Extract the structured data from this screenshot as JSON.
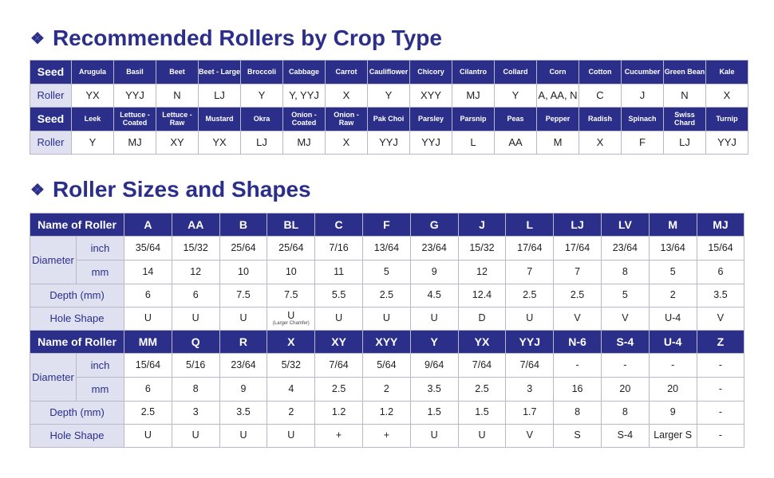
{
  "crop_section": {
    "title": "Recommended Rollers by Crop Type",
    "seed_label": "Seed",
    "roller_label": "Roller",
    "rows": [
      {
        "seeds": [
          "Arugula",
          "Basil",
          "Beet",
          "Beet - Large",
          "Broccoli",
          "Cabbage",
          "Carrot",
          "Cauliflower",
          "Chicory",
          "Cilantro",
          "Collard",
          "Corn",
          "Cotton",
          "Cucumber",
          "Green Bean",
          "Kale"
        ],
        "rollers": [
          "YX",
          "YYJ",
          "N",
          "LJ",
          "Y",
          "Y, YYJ",
          "X",
          "Y",
          "XYY",
          "MJ",
          "Y",
          "A, AA, N",
          "C",
          "J",
          "N",
          "X"
        ]
      },
      {
        "seeds": [
          "Leek",
          "Lettuce - Coated",
          "Lettuce - Raw",
          "Mustard",
          "Okra",
          "Onion - Coated",
          "Onion - Raw",
          "Pak Choi",
          "Parsley",
          "Parsnip",
          "Peas",
          "Pepper",
          "Radish",
          "Spinach",
          "Swiss Chard",
          "Turnip"
        ],
        "rollers": [
          "Y",
          "MJ",
          "XY",
          "YX",
          "LJ",
          "MJ",
          "X",
          "YYJ",
          "YYJ",
          "L",
          "AA",
          "M",
          "X",
          "F",
          "LJ",
          "YYJ"
        ]
      }
    ]
  },
  "sizes_section": {
    "title": "Roller Sizes and Shapes",
    "labels": {
      "name": "Name of Roller",
      "diameter": "Diameter",
      "inch": "inch",
      "mm": "mm",
      "depth": "Depth (mm)",
      "hole": "Hole Shape"
    },
    "blocks": [
      {
        "names": [
          "A",
          "AA",
          "B",
          "BL",
          "C",
          "F",
          "G",
          "J",
          "L",
          "LJ",
          "LV",
          "M",
          "MJ"
        ],
        "inch": [
          "35/64",
          "15/32",
          "25/64",
          "25/64",
          "7/16",
          "13/64",
          "23/64",
          "15/32",
          "17/64",
          "17/64",
          "23/64",
          "13/64",
          "15/64"
        ],
        "mm": [
          "14",
          "12",
          "10",
          "10",
          "11",
          "5",
          "9",
          "12",
          "7",
          "7",
          "8",
          "5",
          "6"
        ],
        "depth": [
          "6",
          "6",
          "7.5",
          "7.5",
          "5.5",
          "2.5",
          "4.5",
          "12.4",
          "2.5",
          "2.5",
          "5",
          "2",
          "3.5"
        ],
        "hole": [
          "U",
          "U",
          "U",
          "U",
          "U",
          "U",
          "U",
          "D",
          "U",
          "V",
          "V",
          "U-4",
          "V"
        ],
        "hole_notes": [
          "",
          "",
          "",
          "(Larger Chamfer)",
          "",
          "",
          "",
          "",
          "",
          "",
          "",
          "",
          ""
        ]
      },
      {
        "names": [
          "MM",
          "Q",
          "R",
          "X",
          "XY",
          "XYY",
          "Y",
          "YX",
          "YYJ",
          "N-6",
          "S-4",
          "U-4",
          "Z"
        ],
        "inch": [
          "15/64",
          "5/16",
          "23/64",
          "5/32",
          "7/64",
          "5/64",
          "9/64",
          "7/64",
          "7/64",
          "-",
          "-",
          "-",
          "-"
        ],
        "mm": [
          "6",
          "8",
          "9",
          "4",
          "2.5",
          "2",
          "3.5",
          "2.5",
          "3",
          "16",
          "20",
          "20",
          "-"
        ],
        "depth": [
          "2.5",
          "3",
          "3.5",
          "2",
          "1.2",
          "1.2",
          "1.5",
          "1.5",
          "1.7",
          "8",
          "8",
          "9",
          "-"
        ],
        "hole": [
          "U",
          "U",
          "U",
          "U",
          "+",
          "+",
          "U",
          "U",
          "V",
          "S",
          "S-4",
          "Larger S",
          "-"
        ],
        "hole_notes": [
          "",
          "",
          "",
          "",
          "",
          "",
          "",
          "",
          "",
          "",
          "",
          "",
          ""
        ]
      }
    ]
  }
}
